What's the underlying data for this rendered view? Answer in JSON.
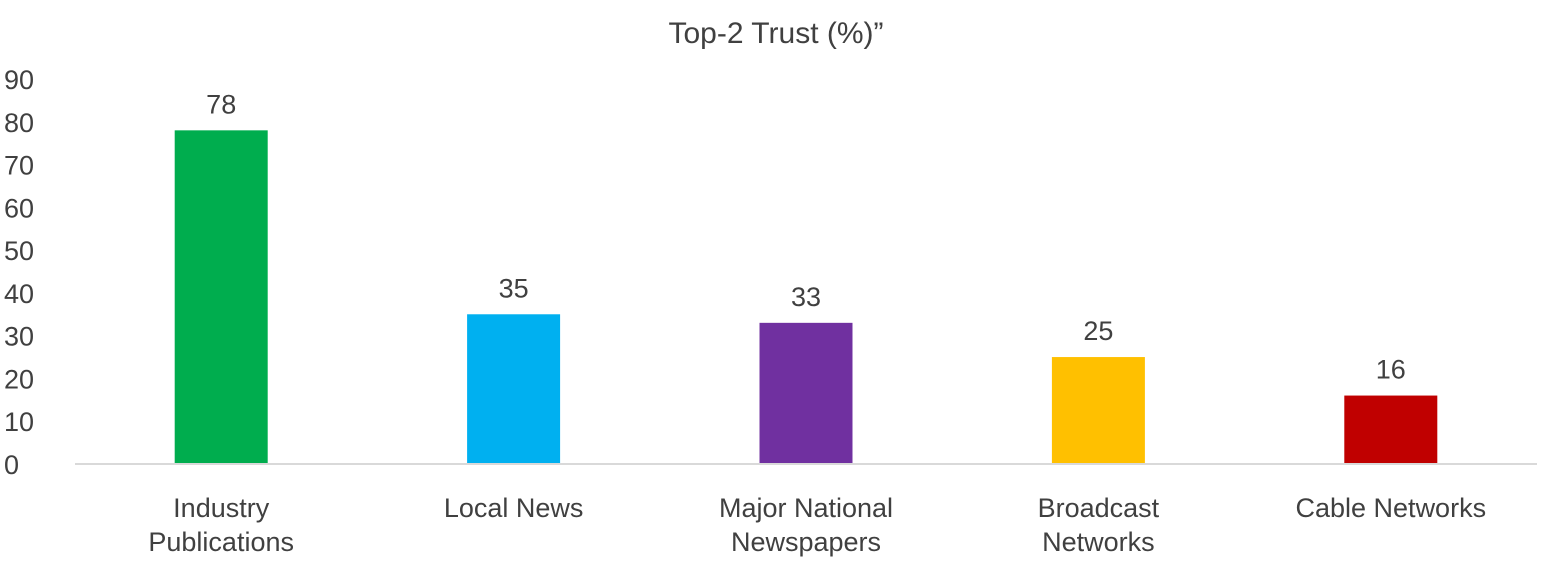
{
  "chart_data": {
    "type": "bar",
    "title": "Top-2 Trust (%)”",
    "xlabel": "",
    "ylabel": "",
    "categories": [
      [
        "Industry",
        "Publications"
      ],
      [
        "Local News"
      ],
      [
        "Major National",
        "Newspapers"
      ],
      [
        "Broadcast",
        "Networks"
      ],
      [
        "Cable Networks"
      ]
    ],
    "values": [
      78,
      35,
      33,
      25,
      16
    ],
    "colors": [
      "#00ad4e",
      "#00b0f0",
      "#7030a0",
      "#ffc000",
      "#c00000"
    ],
    "ylim": [
      0,
      90
    ],
    "yticks": [
      0,
      10,
      20,
      30,
      40,
      50,
      60,
      70,
      80,
      90
    ],
    "grid": false,
    "legend": "none",
    "data_labels": true
  }
}
